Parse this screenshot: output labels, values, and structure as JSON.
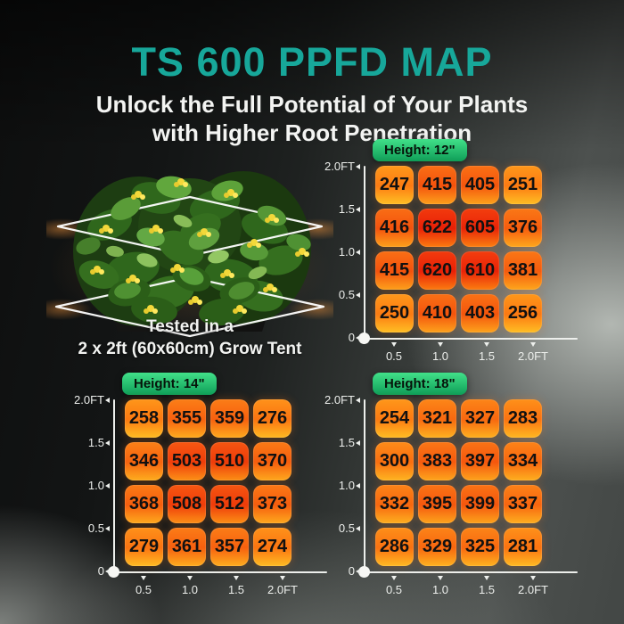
{
  "header": {
    "title": "TS 600 PPFD MAP",
    "subtitle_line1": "Unlock the Full Potential of Your Plants",
    "subtitle_line2": "with Higher Root Penetration"
  },
  "plant": {
    "caption_line1": "Tested in a",
    "caption_line2": "2 x 2ft (60x60cm) Grow Tent"
  },
  "axes": {
    "x_ticks": [
      "0.5",
      "1.0",
      "1.5",
      "2.0FT"
    ],
    "y_ticks": [
      "2.0FT",
      "1.5",
      "1.0",
      "0.5",
      "0"
    ]
  },
  "colors": {
    "title_teal": "#17a79a",
    "axis_white": "#edefec",
    "value_text": "#111111",
    "badge_green_top": "#41e089",
    "badge_green_bottom": "#0f9e58",
    "badge_text": "#06130a",
    "heat_scale": {
      "min": 240,
      "max": 630
    },
    "heat_low": {
      "top": "#ff9b1b",
      "mid": "#fd7d12",
      "bottom": "#ffc125"
    },
    "heat_high": {
      "top": "#f2380d",
      "mid": "#e81e07",
      "bottom": "#fb7a10"
    }
  },
  "chart_data": [
    {
      "type": "heatmap",
      "title": "Height: 12\"",
      "x": [
        0.5,
        1.0,
        1.5,
        2.0
      ],
      "y": [
        2.0,
        1.5,
        1.0,
        0.5
      ],
      "x_unit": "FT",
      "y_unit": "FT",
      "xlim": [
        0,
        2.0
      ],
      "ylim": [
        0,
        2.0
      ],
      "values": [
        [
          247,
          415,
          405,
          251
        ],
        [
          416,
          622,
          605,
          376
        ],
        [
          415,
          620,
          610,
          381
        ],
        [
          250,
          410,
          403,
          256
        ]
      ]
    },
    {
      "type": "heatmap",
      "title": "Height: 14\"",
      "x": [
        0.5,
        1.0,
        1.5,
        2.0
      ],
      "y": [
        2.0,
        1.5,
        1.0,
        0.5
      ],
      "x_unit": "FT",
      "y_unit": "FT",
      "xlim": [
        0,
        2.0
      ],
      "ylim": [
        0,
        2.0
      ],
      "values": [
        [
          258,
          355,
          359,
          276
        ],
        [
          346,
          503,
          510,
          370
        ],
        [
          368,
          508,
          512,
          373
        ],
        [
          279,
          361,
          357,
          274
        ]
      ]
    },
    {
      "type": "heatmap",
      "title": "Height: 18\"",
      "x": [
        0.5,
        1.0,
        1.5,
        2.0
      ],
      "y": [
        2.0,
        1.5,
        1.0,
        0.5
      ],
      "x_unit": "FT",
      "y_unit": "FT",
      "xlim": [
        0,
        2.0
      ],
      "ylim": [
        0,
        2.0
      ],
      "values": [
        [
          254,
          321,
          327,
          283
        ],
        [
          300,
          383,
          397,
          334
        ],
        [
          332,
          395,
          399,
          337
        ],
        [
          286,
          329,
          325,
          281
        ]
      ]
    }
  ]
}
